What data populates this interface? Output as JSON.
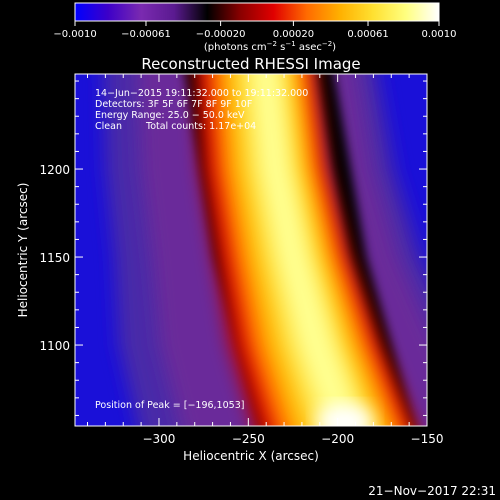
{
  "chart_data": {
    "type": "heatmap",
    "title": "Reconstructed RHESSI Image",
    "xlabel": "Heliocentric X (arcsec)",
    "ylabel": "Heliocentric Y (arcsec)",
    "xlim": [
      -347,
      -150
    ],
    "ylim": [
      1054,
      1254
    ],
    "x_ticks": [
      -300,
      -250,
      -200,
      -150
    ],
    "x_tick_labels": [
      "−300",
      "−250",
      "−200",
      "−150"
    ],
    "y_ticks": [
      1100,
      1150,
      1200
    ],
    "y_tick_labels": [
      "1100",
      "1150",
      "1200"
    ],
    "colorbar": {
      "range": [
        -0.001,
        0.001
      ],
      "ticks": [
        -0.001,
        -0.00061,
        -0.0002,
        0.0002,
        0.00061,
        0.001
      ],
      "tick_labels": [
        "−0.0010",
        "−0.00061",
        "−0.00020",
        "0.00020",
        "0.00061",
        "0.0010"
      ],
      "unit_label": "(photons cm",
      "unit_exp1": "−2",
      "unit_mid": " s",
      "unit_exp2": "−1",
      "unit_mid2": " asec",
      "unit_exp3": "−2",
      "unit_end": ")",
      "colormap": [
        "#0000ff",
        "#3d00c8",
        "#7a2ab0",
        "#5a1a90",
        "#000000",
        "#8a0000",
        "#e00000",
        "#ff6a00",
        "#ffb000",
        "#ffe030",
        "#ffff80",
        "#ffffff"
      ]
    },
    "annotations": {
      "line1": "14−Jun−2015 19:11:32.000 to 19:11:32.000",
      "line2": "Detectors: 3F 5F 6F 7F 8F 9F 10F",
      "line3": "Energy Range: 25.0 − 50.0 keV",
      "line4_method": "Clean",
      "line4_counts": "Total counts: 1.17e+04",
      "peak": "Position of Peak = [−196,1053]"
    },
    "peak_position": [
      -196,
      1053
    ],
    "emission_ridge": [
      {
        "y": 1254,
        "x_center": -248,
        "width": 58
      },
      {
        "y": 1200,
        "x_center": -241,
        "width": 62
      },
      {
        "y": 1150,
        "x_center": -231,
        "width": 66
      },
      {
        "y": 1100,
        "x_center": -218,
        "width": 74
      },
      {
        "y": 1054,
        "x_center": -196,
        "width": 80
      }
    ],
    "left_dark_band": [
      {
        "y": 1254,
        "x_center": -281
      },
      {
        "y": 1150,
        "x_center": -262
      },
      {
        "y": 1054,
        "x_center": -232
      }
    ],
    "right_dark_band": [
      {
        "y": 1254,
        "x_center": -211
      },
      {
        "y": 1150,
        "x_center": -190
      },
      {
        "y": 1054,
        "x_center": -158
      }
    ]
  },
  "footer": {
    "date": "21−Nov−2017 22:31"
  }
}
